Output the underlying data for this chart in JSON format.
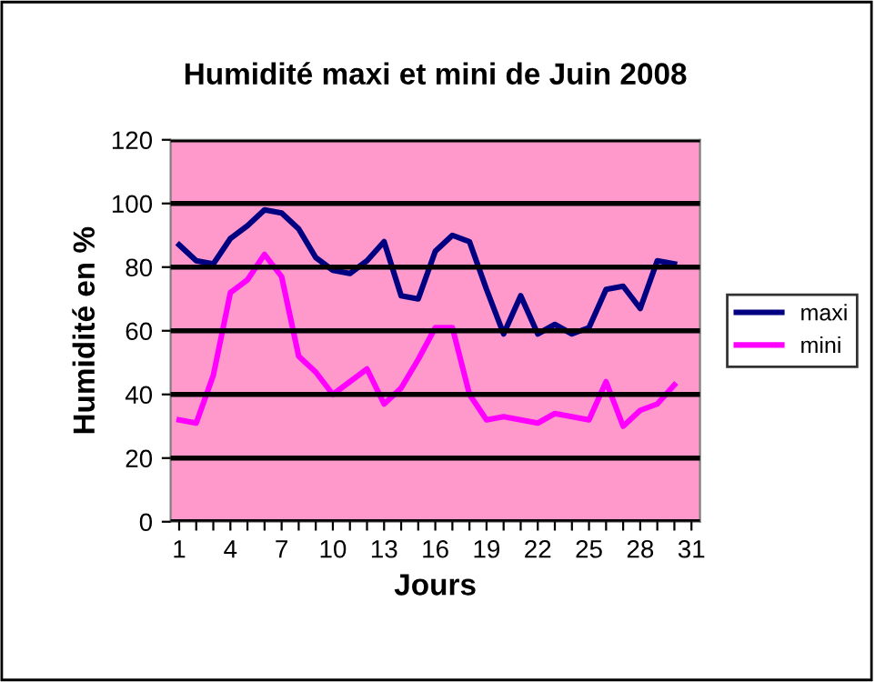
{
  "chart_data": {
    "type": "line",
    "title": "Humidité maxi et mini de Juin 2008",
    "xlabel": "Jours",
    "ylabel": "Humidité en %",
    "categories": [
      "1",
      null,
      null,
      "4",
      null,
      null,
      "7",
      null,
      null,
      "10",
      null,
      null,
      "13",
      null,
      null,
      "16",
      null,
      null,
      "19",
      null,
      null,
      "22",
      null,
      null,
      "25",
      null,
      null,
      "28",
      null,
      null,
      "31"
    ],
    "series": [
      {
        "name": "maxi",
        "color": "#000080",
        "values": [
          87,
          82,
          81,
          89,
          93,
          98,
          97,
          92,
          83,
          79,
          78,
          82,
          88,
          71,
          70,
          85,
          90,
          88,
          73,
          59,
          71,
          59,
          62,
          59,
          61,
          73,
          74,
          67,
          82,
          81,
          null
        ]
      },
      {
        "name": "mini",
        "color": "#ff00ff",
        "values": [
          32,
          31,
          46,
          72,
          76,
          84,
          77,
          52,
          47,
          40,
          44,
          48,
          37,
          42,
          51,
          61,
          61,
          40,
          32,
          33,
          32,
          31,
          34,
          33,
          32,
          44,
          30,
          35,
          37,
          43,
          null
        ]
      }
    ],
    "ylim": [
      0,
      120
    ],
    "yticks": [
      0,
      20,
      40,
      60,
      80,
      100,
      120
    ],
    "grid": "y",
    "legend": "right",
    "marker": "none",
    "line_style": "solid"
  }
}
